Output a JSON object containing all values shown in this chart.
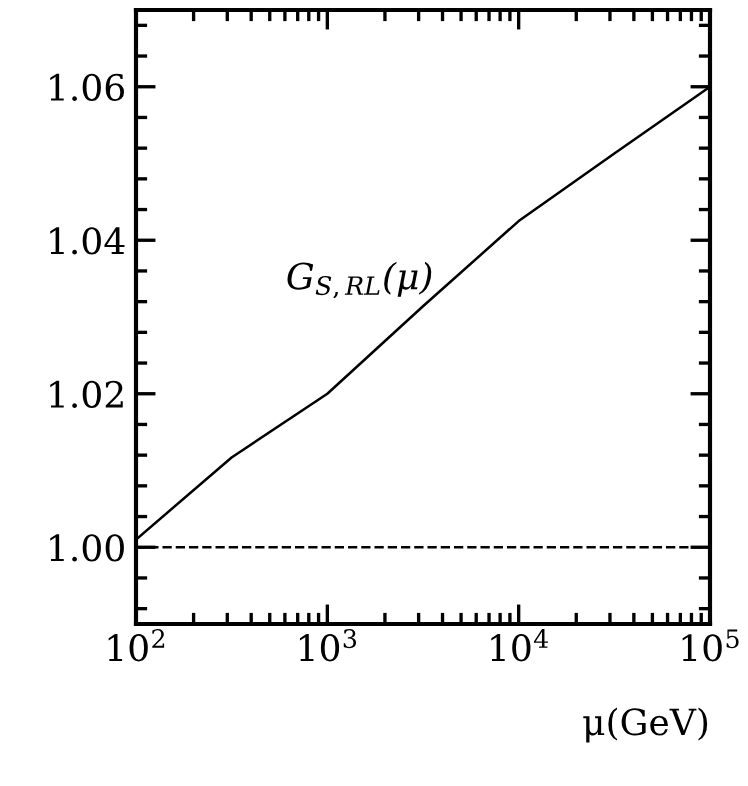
{
  "chart_data": {
    "type": "line",
    "xlabel": "μ(GeV)",
    "log": "x",
    "x": [
      100,
      316,
      1000,
      3162,
      10000,
      31623,
      100000
    ],
    "series": [
      {
        "color": "#000000",
        "values": [
          1.001,
          1.0117,
          1.02,
          1.0314,
          1.0425,
          1.0513,
          1.06
        ]
      }
    ],
    "xlim": [
      100,
      100000
    ],
    "xticks": [
      {
        "value": 100,
        "label": "10$^{2}$"
      },
      {
        "value": 1000,
        "label": "10$^{3}$"
      },
      {
        "value": 10000,
        "label": "10$^{4}$"
      },
      {
        "value": 100000,
        "label": "10$^{5}$"
      }
    ],
    "ylim": [
      0.99,
      1.07
    ],
    "yticks": [
      {
        "value": 1.0,
        "label": "1.00"
      },
      {
        "value": 1.02,
        "label": "1.02"
      },
      {
        "value": 1.04,
        "label": "1.04"
      },
      {
        "value": 1.06,
        "label": "1.06"
      }
    ],
    "ref_lines": [
      {
        "axis": "y",
        "value": 1.0,
        "color": "#000000",
        "line_style": "dashed"
      }
    ],
    "annotations": [
      "G$_{S,RL}$(μ)"
    ],
    "grid": false,
    "legend": false,
    "marker": "none",
    "line_style": "solid"
  }
}
